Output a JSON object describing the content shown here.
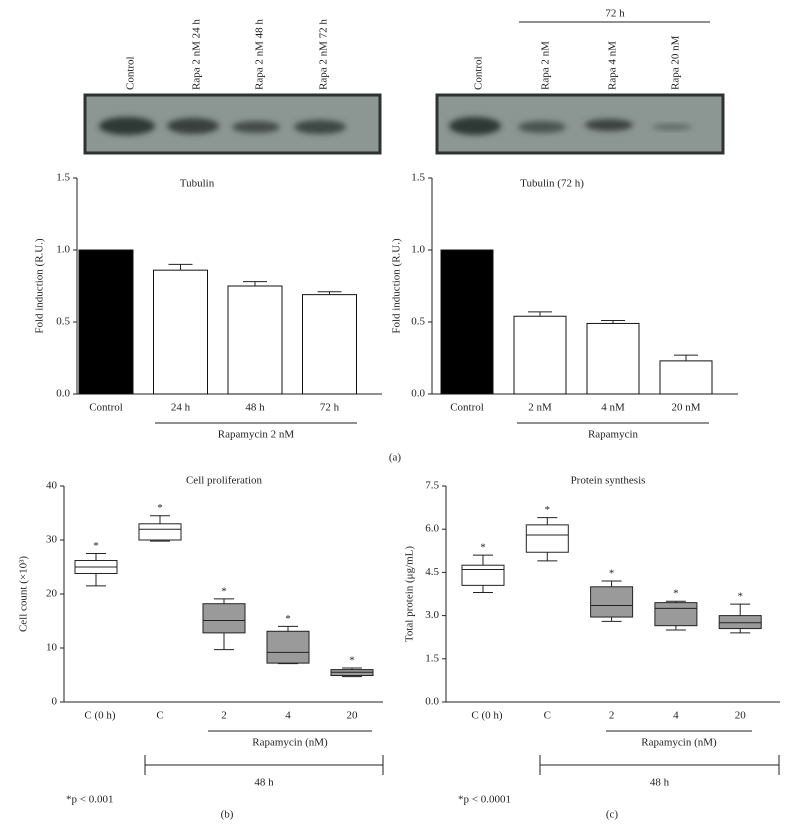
{
  "blots": [
    {
      "lanes": [
        "Control",
        "Rapa 2 nM 24 h",
        "Rapa 2 nM 48 h",
        "Rapa 2 nM 72 h"
      ]
    },
    {
      "group_label": "72 h",
      "lanes": [
        "Control",
        "Rapa 2 nM",
        "Rapa 4 nM",
        "Rapa 20 nM"
      ]
    }
  ],
  "panel_labels": [
    "(a)",
    "(b)",
    "(c)"
  ],
  "chart_data": [
    {
      "type": "bar",
      "title": "Tubulin",
      "y_label": "Fold induction (R.U.)",
      "categories": [
        "Control",
        "24 h",
        "48 h",
        "72 h"
      ],
      "values": [
        1.0,
        0.86,
        0.75,
        0.69
      ],
      "errors": [
        null,
        0.04,
        0.03,
        0.02
      ],
      "colors": [
        "#000000",
        "#ffffff",
        "#ffffff",
        "#ffffff"
      ],
      "group_label": "Rapamycin 2 nM",
      "ylim": [
        0,
        1.5
      ],
      "yticks": [
        {
          "value": 0,
          "label": "0.0"
        },
        {
          "value": 0.5,
          "label": "0.5"
        },
        {
          "value": 1,
          "label": "1.0"
        },
        {
          "value": 1.5,
          "label": "1.5"
        }
      ]
    },
    {
      "type": "bar",
      "title": "Tubulin (72 h)",
      "y_label": "Fold induction (R.U.)",
      "categories": [
        "Control",
        "2 nM",
        "4 nM",
        "20 nM"
      ],
      "values": [
        1.0,
        0.54,
        0.49,
        0.23
      ],
      "errors": [
        null,
        0.03,
        0.02,
        0.04
      ],
      "colors": [
        "#000000",
        "#ffffff",
        "#ffffff",
        "#ffffff"
      ],
      "group_label": "Rapamycin",
      "ylim": [
        0,
        1.5
      ],
      "yticks": [
        {
          "value": 0,
          "label": "0.0"
        },
        {
          "value": 0.5,
          "label": "0.5"
        },
        {
          "value": 1,
          "label": "1.0"
        },
        {
          "value": 1.5,
          "label": "1.5"
        }
      ]
    },
    {
      "type": "box",
      "title": "Cell proliferation",
      "y_label": "Cell count (×10³)",
      "categories": [
        "C (0 h)",
        "C",
        "2",
        "4",
        "20"
      ],
      "boxes": [
        {
          "min": 21.5,
          "q1": 23.8,
          "median": 25,
          "q3": 26.2,
          "max": 27.5
        },
        {
          "min": 29.8,
          "q1": 30,
          "median": 32,
          "q3": 33,
          "max": 34.5
        },
        {
          "min": 9.7,
          "q1": 12.8,
          "median": 15.1,
          "q3": 18.2,
          "max": 19.1
        },
        {
          "min": 7.1,
          "q1": 7.2,
          "median": 9.2,
          "q3": 13.1,
          "max": 14
        },
        {
          "min": 4.7,
          "q1": 4.9,
          "median": 5.5,
          "q3": 6.0,
          "max": 6.3
        }
      ],
      "significance_labels": [
        "*",
        "*",
        "*",
        "*",
        "*"
      ],
      "colors": [
        "#ffffff",
        "#ffffff",
        "#9a9a9a",
        "#9a9a9a",
        "#9a9a9a"
      ],
      "group_label": "Rapamycin (nM)",
      "bracket_label": "48 h",
      "footnote": "*p < 0.001",
      "ylim": [
        0,
        40
      ],
      "yticks": [
        0,
        10,
        20,
        30,
        40
      ]
    },
    {
      "type": "box",
      "title": "Protein synthesis",
      "y_label": "Total protein (μg/mL)",
      "categories": [
        "C (0 h)",
        "C",
        "2",
        "4",
        "20"
      ],
      "boxes": [
        {
          "min": 3.8,
          "q1": 4.05,
          "median": 4.6,
          "q3": 4.75,
          "max": 5.1
        },
        {
          "min": 4.9,
          "q1": 5.2,
          "median": 5.8,
          "q3": 6.15,
          "max": 6.4
        },
        {
          "min": 2.8,
          "q1": 2.95,
          "median": 3.35,
          "q3": 4.0,
          "max": 4.2
        },
        {
          "min": 2.5,
          "q1": 2.65,
          "median": 3.25,
          "q3": 3.45,
          "max": 3.5
        },
        {
          "min": 2.4,
          "q1": 2.55,
          "median": 2.75,
          "q3": 3.0,
          "max": 3.4
        }
      ],
      "significance_labels": [
        "*",
        "*",
        "*",
        "*",
        "*"
      ],
      "colors": [
        "#ffffff",
        "#ffffff",
        "#9a9a9a",
        "#9a9a9a",
        "#9a9a9a"
      ],
      "group_label": "Rapamycin (nM)",
      "bracket_label": "48 h",
      "footnote": "*p < 0.0001",
      "ylim": [
        0,
        7.5
      ],
      "yticks": [
        {
          "value": 0,
          "label": "0.0"
        },
        1.5,
        {
          "value": 3,
          "label": "3.0"
        },
        4.5,
        {
          "value": 6,
          "label": "6.0"
        },
        7.5
      ]
    }
  ]
}
